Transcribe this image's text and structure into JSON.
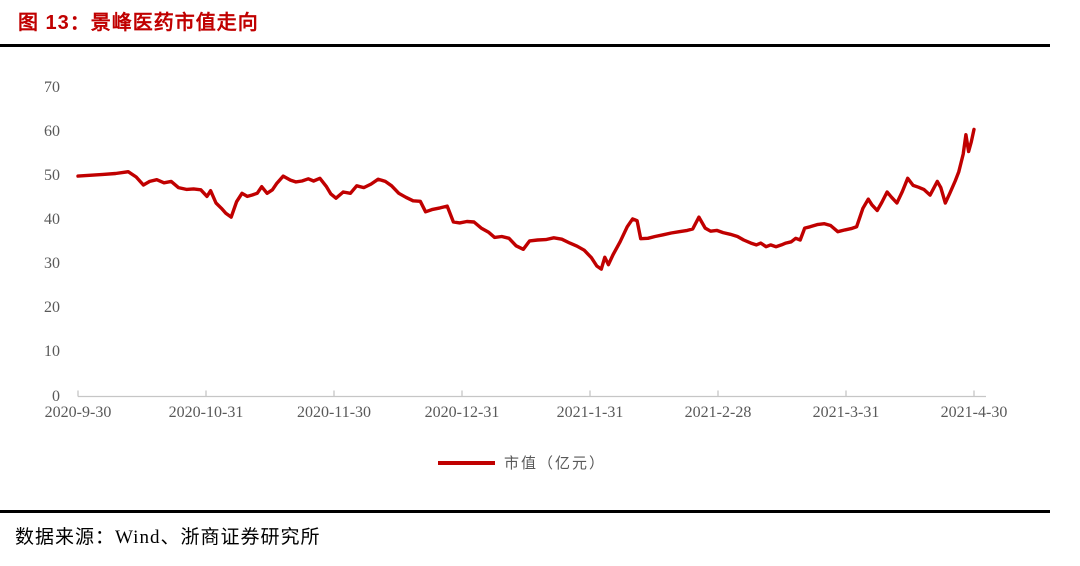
{
  "page": {
    "title": "图 13：景峰医药市值走向",
    "source": "数据来源：Wind、浙商证券研究所"
  },
  "colors": {
    "title_red": "#c00000",
    "series_red": "#c00000",
    "axis_text_gray": "#595959",
    "axis_line_gray": "#c6c6c6",
    "rule_black": "#000000"
  },
  "chart_data": {
    "type": "line",
    "title": "景峰医药市值走向",
    "xlabel": "",
    "ylabel": "",
    "ylim": [
      0,
      70
    ],
    "y_ticks": [
      0,
      10,
      20,
      30,
      40,
      50,
      60,
      70
    ],
    "x_tick_labels": [
      "2020-9-30",
      "2020-10-31",
      "2020-11-30",
      "2020-12-31",
      "2021-1-31",
      "2021-2-28",
      "2021-3-31",
      "2021-4-30"
    ],
    "grid": "off",
    "legend_position": "bottom-center",
    "legend": [
      {
        "name": "市值（亿元）",
        "color": "#c00000"
      }
    ],
    "series": [
      {
        "name": "市值（亿元）",
        "color": "#c00000",
        "x_unit": "fraction of x-axis from 2020-9-30 to 2021-4-30",
        "y_unit": "亿元",
        "points": [
          [
            0.0,
            50.0
          ],
          [
            0.013,
            50.2
          ],
          [
            0.028,
            50.4
          ],
          [
            0.042,
            50.6
          ],
          [
            0.056,
            51.0
          ],
          [
            0.065,
            49.8
          ],
          [
            0.073,
            48.0
          ],
          [
            0.08,
            48.8
          ],
          [
            0.088,
            49.2
          ],
          [
            0.096,
            48.5
          ],
          [
            0.104,
            48.8
          ],
          [
            0.112,
            47.4
          ],
          [
            0.121,
            47.0
          ],
          [
            0.129,
            47.1
          ],
          [
            0.137,
            46.9
          ],
          [
            0.144,
            45.4
          ],
          [
            0.148,
            46.7
          ],
          [
            0.154,
            43.9
          ],
          [
            0.16,
            42.7
          ],
          [
            0.165,
            41.6
          ],
          [
            0.171,
            40.7
          ],
          [
            0.177,
            44.2
          ],
          [
            0.183,
            46.1
          ],
          [
            0.189,
            45.4
          ],
          [
            0.194,
            45.7
          ],
          [
            0.2,
            46.1
          ],
          [
            0.205,
            47.6
          ],
          [
            0.211,
            46.1
          ],
          [
            0.217,
            46.9
          ],
          [
            0.222,
            48.4
          ],
          [
            0.229,
            50.0
          ],
          [
            0.237,
            49.1
          ],
          [
            0.243,
            48.7
          ],
          [
            0.25,
            48.9
          ],
          [
            0.257,
            49.4
          ],
          [
            0.263,
            48.9
          ],
          [
            0.27,
            49.5
          ],
          [
            0.277,
            47.7
          ],
          [
            0.282,
            46.0
          ],
          [
            0.288,
            45.0
          ],
          [
            0.296,
            46.4
          ],
          [
            0.304,
            46.1
          ],
          [
            0.311,
            47.8
          ],
          [
            0.319,
            47.4
          ],
          [
            0.327,
            48.2
          ],
          [
            0.335,
            49.3
          ],
          [
            0.343,
            48.8
          ],
          [
            0.35,
            47.8
          ],
          [
            0.358,
            46.1
          ],
          [
            0.366,
            45.2
          ],
          [
            0.374,
            44.4
          ],
          [
            0.382,
            44.3
          ],
          [
            0.388,
            41.9
          ],
          [
            0.395,
            42.4
          ],
          [
            0.404,
            42.8
          ],
          [
            0.412,
            43.2
          ],
          [
            0.419,
            39.6
          ],
          [
            0.426,
            39.4
          ],
          [
            0.434,
            39.7
          ],
          [
            0.442,
            39.6
          ],
          [
            0.45,
            38.2
          ],
          [
            0.458,
            37.3
          ],
          [
            0.465,
            36.1
          ],
          [
            0.473,
            36.3
          ],
          [
            0.481,
            35.9
          ],
          [
            0.489,
            34.2
          ],
          [
            0.497,
            33.4
          ],
          [
            0.504,
            35.3
          ],
          [
            0.513,
            35.5
          ],
          [
            0.522,
            35.6
          ],
          [
            0.531,
            36.0
          ],
          [
            0.54,
            35.7
          ],
          [
            0.549,
            34.8
          ],
          [
            0.557,
            34.1
          ],
          [
            0.565,
            33.2
          ],
          [
            0.573,
            31.5
          ],
          [
            0.579,
            29.6
          ],
          [
            0.584,
            28.9
          ],
          [
            0.588,
            31.6
          ],
          [
            0.592,
            29.9
          ],
          [
            0.597,
            32.1
          ],
          [
            0.605,
            35.1
          ],
          [
            0.613,
            38.5
          ],
          [
            0.619,
            40.3
          ],
          [
            0.624,
            39.9
          ],
          [
            0.628,
            35.8
          ],
          [
            0.636,
            35.9
          ],
          [
            0.644,
            36.3
          ],
          [
            0.653,
            36.7
          ],
          [
            0.662,
            37.1
          ],
          [
            0.671,
            37.4
          ],
          [
            0.68,
            37.7
          ],
          [
            0.686,
            38.0
          ],
          [
            0.693,
            40.7
          ],
          [
            0.7,
            38.2
          ],
          [
            0.706,
            37.5
          ],
          [
            0.713,
            37.7
          ],
          [
            0.72,
            37.2
          ],
          [
            0.728,
            36.8
          ],
          [
            0.736,
            36.3
          ],
          [
            0.743,
            35.5
          ],
          [
            0.751,
            34.8
          ],
          [
            0.757,
            34.4
          ],
          [
            0.762,
            34.8
          ],
          [
            0.768,
            34.0
          ],
          [
            0.773,
            34.4
          ],
          [
            0.779,
            34.0
          ],
          [
            0.785,
            34.4
          ],
          [
            0.79,
            34.8
          ],
          [
            0.796,
            35.1
          ],
          [
            0.801,
            35.9
          ],
          [
            0.806,
            35.5
          ],
          [
            0.811,
            38.2
          ],
          [
            0.817,
            38.5
          ],
          [
            0.825,
            39.0
          ],
          [
            0.833,
            39.2
          ],
          [
            0.84,
            38.8
          ],
          [
            0.848,
            37.4
          ],
          [
            0.856,
            37.8
          ],
          [
            0.863,
            38.1
          ],
          [
            0.869,
            38.5
          ],
          [
            0.876,
            42.7
          ],
          [
            0.882,
            44.8
          ],
          [
            0.886,
            43.5
          ],
          [
            0.892,
            42.2
          ],
          [
            0.897,
            44.0
          ],
          [
            0.903,
            46.4
          ],
          [
            0.908,
            45.2
          ],
          [
            0.914,
            43.9
          ],
          [
            0.92,
            46.5
          ],
          [
            0.926,
            49.5
          ],
          [
            0.932,
            47.9
          ],
          [
            0.938,
            47.5
          ],
          [
            0.944,
            47.0
          ],
          [
            0.951,
            45.7
          ],
          [
            0.959,
            48.8
          ],
          [
            0.963,
            47.4
          ],
          [
            0.968,
            43.9
          ],
          [
            0.973,
            46.1
          ],
          [
            0.979,
            48.9
          ],
          [
            0.983,
            51.0
          ],
          [
            0.988,
            55.0
          ],
          [
            0.991,
            59.4
          ],
          [
            0.994,
            55.6
          ],
          [
            0.997,
            57.8
          ],
          [
            1.0,
            60.6
          ]
        ]
      }
    ]
  }
}
